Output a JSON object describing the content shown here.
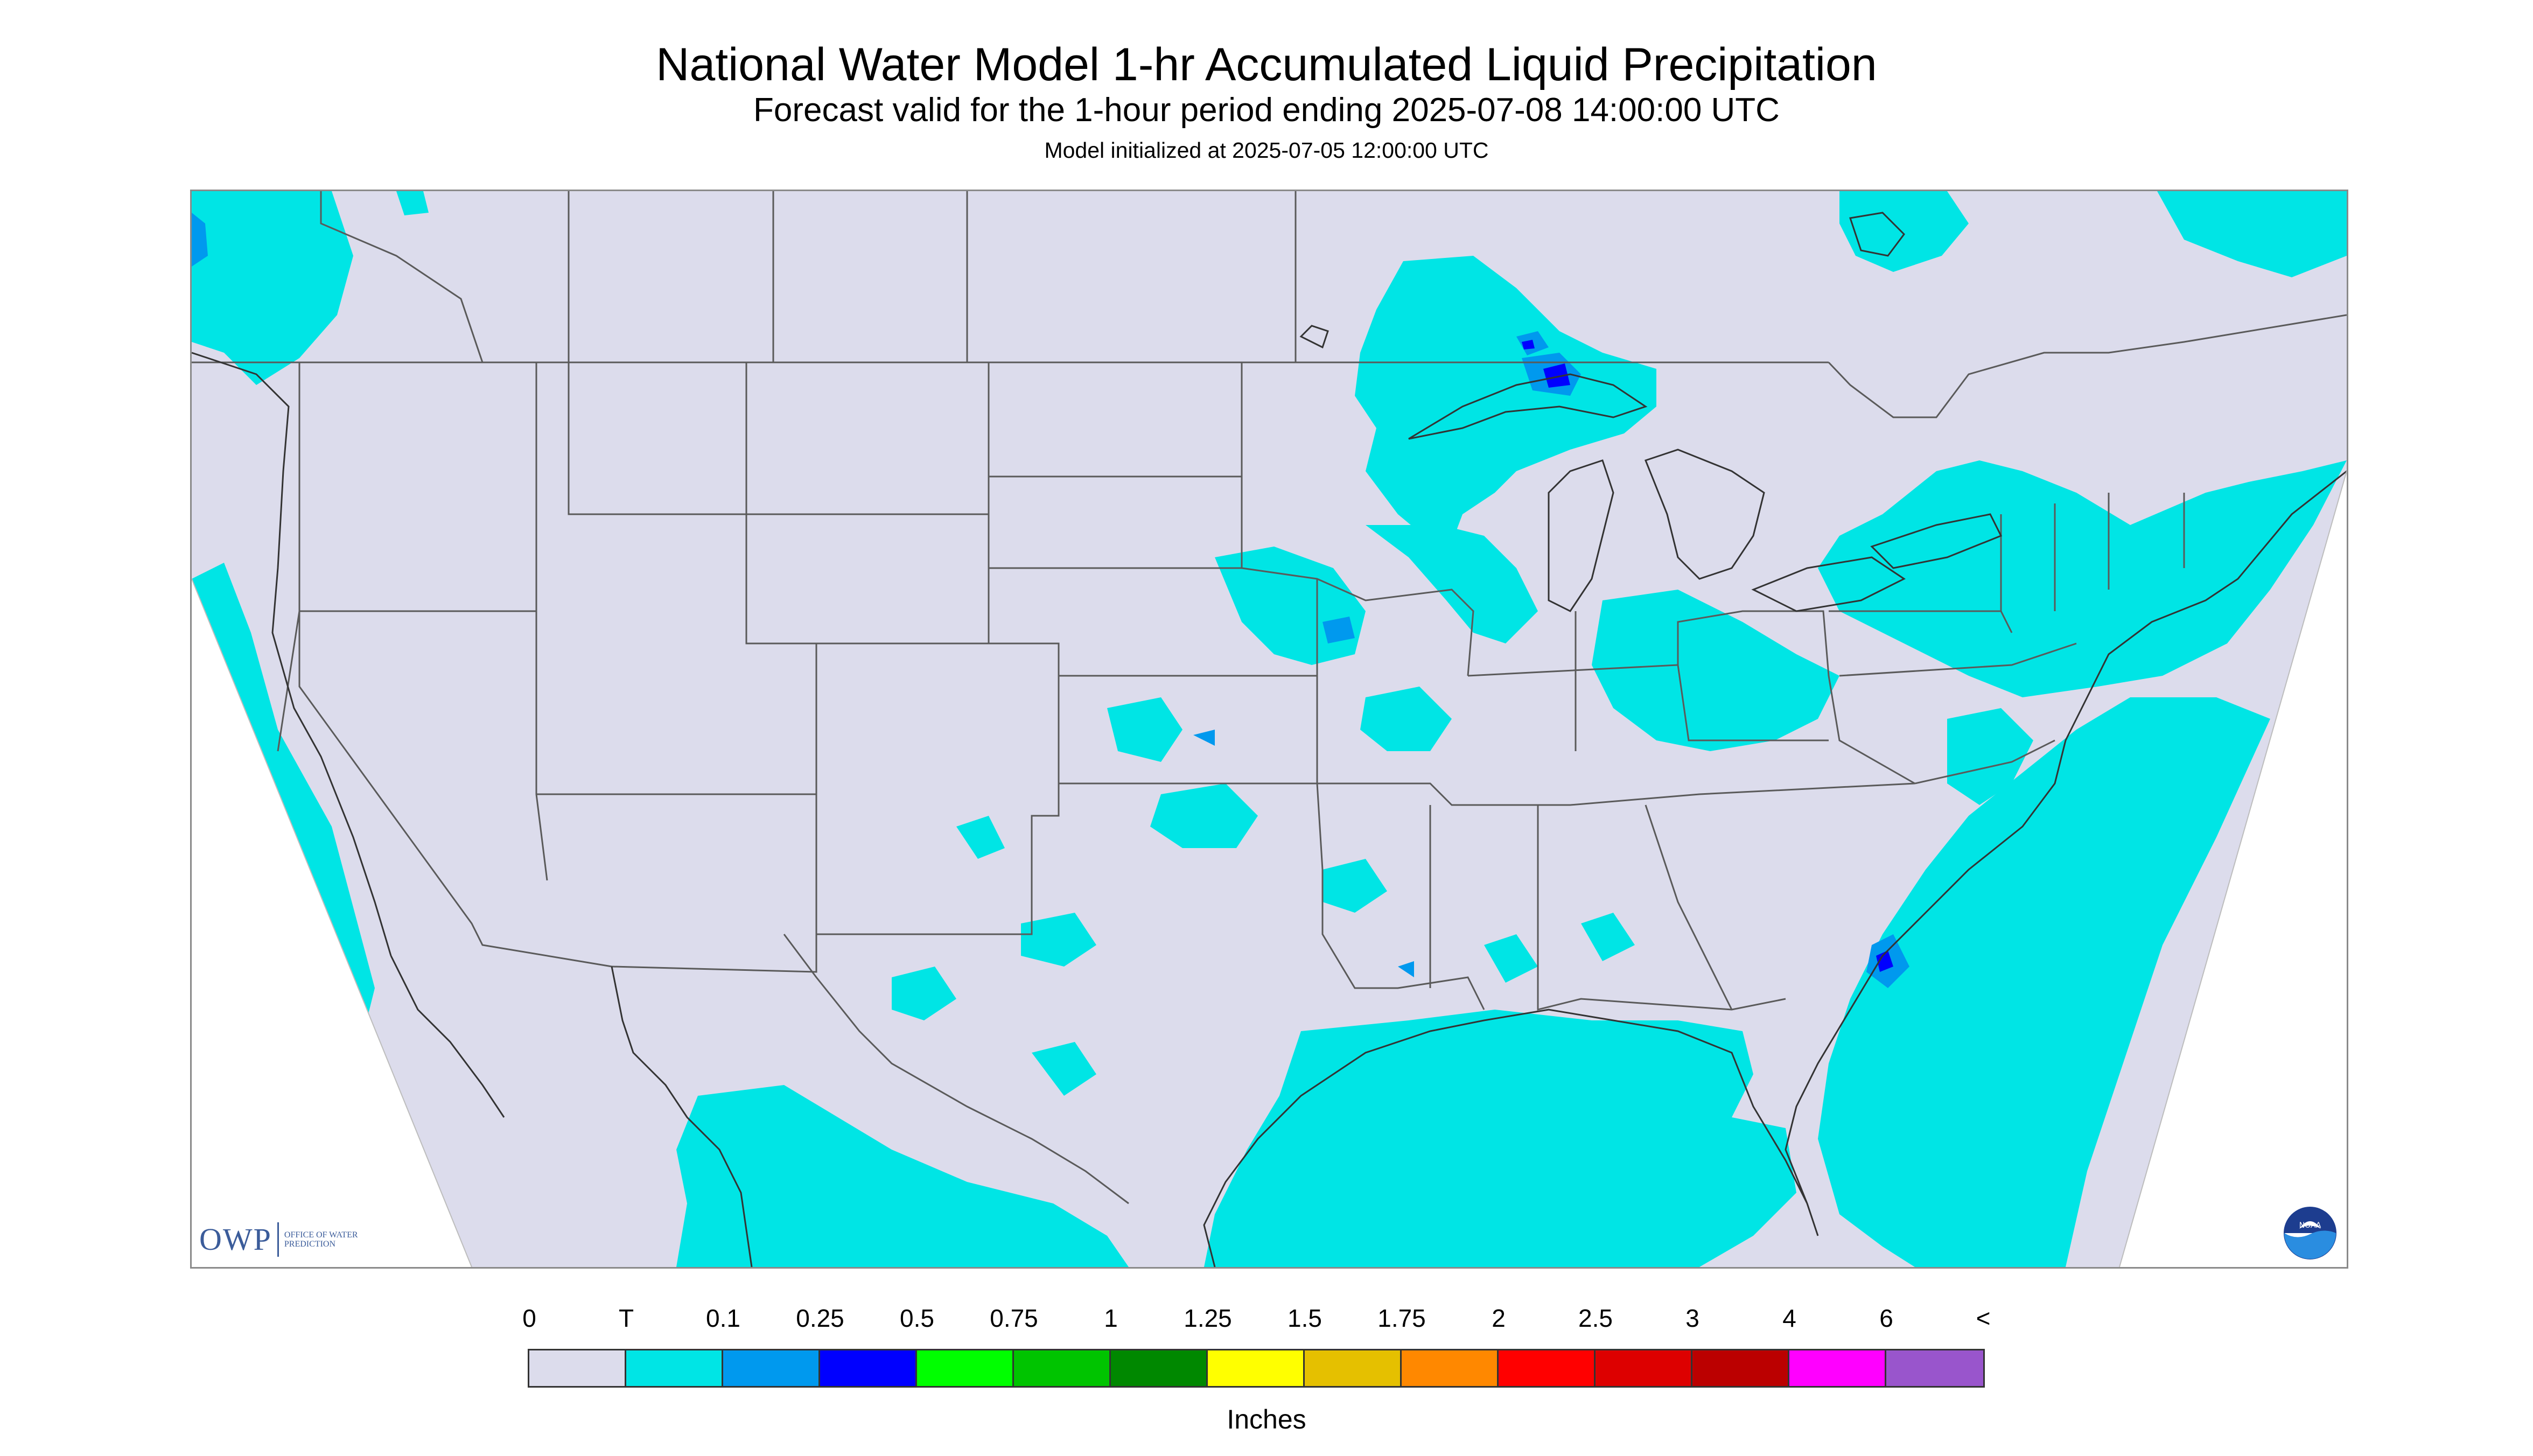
{
  "header": {
    "title": "National Water Model 1-hr Accumulated Liquid Precipitation",
    "subtitle": "Forecast valid for the 1-hour period ending 2025-07-08 14:00:00 UTC",
    "init": "Model initialized at 2025-07-05 12:00:00 UTC"
  },
  "map": {
    "background_color": "#dcdcec",
    "outside_domain_color": "#ffffff",
    "boundary_color": "#5a5a5a",
    "projection": "Lambert conformal, continental United States"
  },
  "logos": {
    "owp": {
      "mark": "OWP",
      "text": "OFFICE OF WATER PREDICTION"
    },
    "noaa": {
      "text": "NOAA",
      "icon": "noaa-logo-icon"
    }
  },
  "legend": {
    "labels": [
      "0",
      "T",
      "0.1",
      "0.25",
      "0.5",
      "0.75",
      "1",
      "1.25",
      "1.5",
      "1.75",
      "2",
      "2.5",
      "3",
      "4",
      "6",
      "<"
    ],
    "colors": [
      "#dcdcec",
      "#00e5e5",
      "#0099ee",
      "#0000ff",
      "#00ff00",
      "#00c400",
      "#008800",
      "#ffff00",
      "#e5c000",
      "#ff8800",
      "#ff0000",
      "#dd0000",
      "#bb0000",
      "#ff00ff",
      "#9955cc"
    ],
    "units": "Inches"
  }
}
